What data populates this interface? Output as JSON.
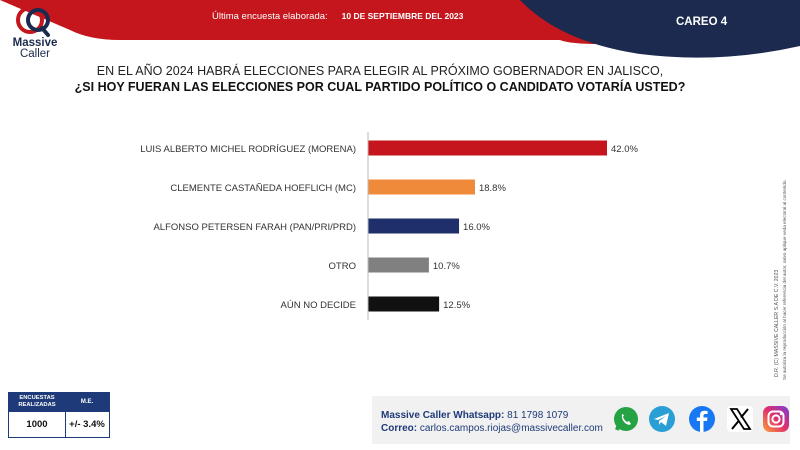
{
  "brand": {
    "name_line1": "Massive",
    "name_line2": "Caller"
  },
  "header": {
    "survey_label": "Última encuesta elaborada:",
    "survey_date": "10 DE SEPTIEMBRE DEL 2023",
    "careo": "CAREO 4"
  },
  "question": {
    "line1": "EN EL AÑO 2024 HABRÁ ELECCIONES PARA ELEGIR AL PRÓXIMO GOBERNADOR EN JALISCO,",
    "line2": "¿SI HOY FUERAN LAS ELECCIONES POR CUAL PARTIDO POLÍTICO O CANDIDATO VOTARÍA USTED?"
  },
  "colors": {
    "brand_red": "#c4161c",
    "navy": "#1e3a78",
    "header_dark": "#1b2a4e"
  },
  "chart_data": {
    "type": "bar",
    "orientation": "horizontal",
    "categories": [
      "LUIS ALBERTO MICHEL RODRÍGUEZ (MORENA)",
      "CLEMENTE CASTAÑEDA HOEFLICH (MC)",
      "ALFONSO PETERSEN FARAH (PAN/PRI/PRD)",
      "OTRO",
      "AÚN NO DECIDE"
    ],
    "values": [
      42.0,
      18.8,
      16.0,
      10.7,
      12.5
    ],
    "value_labels": [
      "42.0%",
      "18.8%",
      "16.0%",
      "10.7%",
      "12.5%"
    ],
    "colors": [
      "#c4161c",
      "#ef8a3b",
      "#1f2f6b",
      "#808080",
      "#111111"
    ],
    "xlim": [
      0,
      42
    ],
    "grid": false,
    "legend": "none"
  },
  "side_note": {
    "line1": "D.R. (C) MASSIVE CALLER S.A DE C.V. 2023",
    "line2": "Se autoriza la reproducción al hacer referencia del autor, salvo aplique veda electoral al contenido."
  },
  "stats": {
    "col1_header_line1": "ENCUESTAS",
    "col1_header_line2": "REALIZADAS",
    "col2_header": "M.E.",
    "col1_value": "1000",
    "col2_value": "+/- 3.4%"
  },
  "contact": {
    "whatsapp_label": "Massive Caller Whatsapp:",
    "whatsapp_value": "81 1798 1079",
    "email_label": "Correo:",
    "email_value": "carlos.campos.riojas@massivecaller.com"
  },
  "social": [
    {
      "icon": "whatsapp-icon",
      "color": "#25a244"
    },
    {
      "icon": "telegram-icon",
      "color": "#2a9fd6"
    },
    {
      "icon": "facebook-icon",
      "color": "#1877f2"
    },
    {
      "icon": "x-icon",
      "color": "#000000"
    },
    {
      "icon": "instagram-icon",
      "color": "#d8307a"
    }
  ]
}
